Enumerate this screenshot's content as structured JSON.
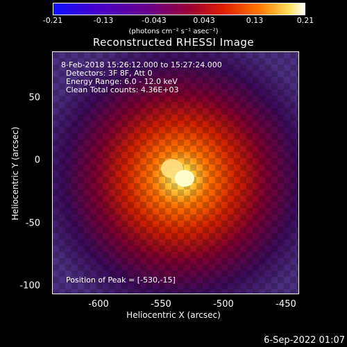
{
  "colorbar": {
    "ticks": [
      "-0.21",
      "-0.13",
      "-0.043",
      "0.043",
      "0.13",
      "0.21"
    ],
    "unit_label": "(photons cm⁻² s⁻¹ asec⁻²)"
  },
  "title": "Reconstructed RHESSI Image",
  "info": {
    "time_range": "8-Feb-2018 15:26:12.000 to 15:27:24.000",
    "detectors": "Detectors: 3F 8F, Att 0",
    "energy": "Energy Range: 6.0 - 12.0 keV",
    "clean": "Clean     Total counts: 4.36E+03",
    "peak": "Position of Peak = [-530,-15]"
  },
  "axes": {
    "xlabel": "Heliocentric X (arcsec)",
    "ylabel": "Heliocentric Y (arcsec)",
    "xticks": [
      "-600",
      "-550",
      "-500",
      "-450"
    ],
    "yticks": [
      "50",
      "0",
      "-50",
      "-100"
    ]
  },
  "footer_date": "6-Sep-2022 01:07"
}
